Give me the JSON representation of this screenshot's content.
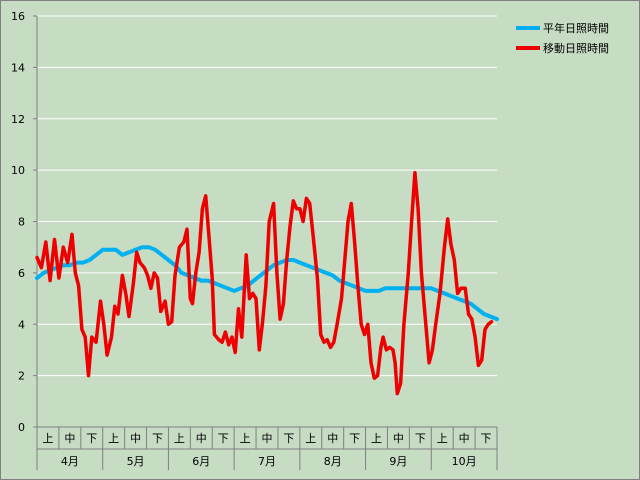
{
  "colors": {
    "background": "#c6dcc3",
    "grid": "#ffffff",
    "normal": "#00b0f0",
    "moving": "#ee0000"
  },
  "chart_data": {
    "type": "line",
    "title": "",
    "xlabel": "",
    "ylabel": "",
    "ylim": [
      0,
      16
    ],
    "yticks": [
      0,
      2,
      4,
      6,
      8,
      10,
      12,
      14,
      16
    ],
    "months": [
      "4月",
      "5月",
      "6月",
      "7月",
      "8月",
      "9月",
      "10月"
    ],
    "periods": [
      "上",
      "中",
      "下"
    ],
    "legend_position": "top-right",
    "grid": true,
    "series": [
      {
        "name": "平年日照時間",
        "color": "#00b0f0",
        "points": [
          [
            0.0,
            5.8
          ],
          [
            0.3,
            6.0
          ],
          [
            0.6,
            6.1
          ],
          [
            0.9,
            6.2
          ],
          [
            1.2,
            6.3
          ],
          [
            1.5,
            6.3
          ],
          [
            1.8,
            6.4
          ],
          [
            2.1,
            6.4
          ],
          [
            2.4,
            6.5
          ],
          [
            2.7,
            6.7
          ],
          [
            3.0,
            6.9
          ],
          [
            3.3,
            6.9
          ],
          [
            3.6,
            6.9
          ],
          [
            3.9,
            6.7
          ],
          [
            4.2,
            6.8
          ],
          [
            4.5,
            6.9
          ],
          [
            4.8,
            7.0
          ],
          [
            5.1,
            7.0
          ],
          [
            5.4,
            6.9
          ],
          [
            5.7,
            6.7
          ],
          [
            6.0,
            6.5
          ],
          [
            6.3,
            6.3
          ],
          [
            6.6,
            6.0
          ],
          [
            6.9,
            5.9
          ],
          [
            7.2,
            5.8
          ],
          [
            7.5,
            5.7
          ],
          [
            7.8,
            5.7
          ],
          [
            8.1,
            5.6
          ],
          [
            8.4,
            5.5
          ],
          [
            8.7,
            5.4
          ],
          [
            9.0,
            5.3
          ],
          [
            9.3,
            5.4
          ],
          [
            9.6,
            5.5
          ],
          [
            9.9,
            5.7
          ],
          [
            10.2,
            5.9
          ],
          [
            10.5,
            6.1
          ],
          [
            10.8,
            6.3
          ],
          [
            11.1,
            6.4
          ],
          [
            11.4,
            6.5
          ],
          [
            11.7,
            6.5
          ],
          [
            12.0,
            6.4
          ],
          [
            12.3,
            6.3
          ],
          [
            12.6,
            6.2
          ],
          [
            12.9,
            6.1
          ],
          [
            13.2,
            6.0
          ],
          [
            13.5,
            5.9
          ],
          [
            13.8,
            5.7
          ],
          [
            14.1,
            5.6
          ],
          [
            14.4,
            5.5
          ],
          [
            14.7,
            5.4
          ],
          [
            15.0,
            5.3
          ],
          [
            15.3,
            5.3
          ],
          [
            15.6,
            5.3
          ],
          [
            15.9,
            5.4
          ],
          [
            16.2,
            5.4
          ],
          [
            16.5,
            5.4
          ],
          [
            16.8,
            5.4
          ],
          [
            17.1,
            5.4
          ],
          [
            17.4,
            5.4
          ],
          [
            17.7,
            5.4
          ],
          [
            18.0,
            5.4
          ],
          [
            18.3,
            5.3
          ],
          [
            18.6,
            5.2
          ],
          [
            18.9,
            5.1
          ],
          [
            19.2,
            5.0
          ],
          [
            19.5,
            4.9
          ],
          [
            19.8,
            4.8
          ],
          [
            20.1,
            4.6
          ],
          [
            20.4,
            4.4
          ],
          [
            20.7,
            4.3
          ],
          [
            21.0,
            4.2
          ]
        ]
      },
      {
        "name": "移動日照時間",
        "color": "#ee0000",
        "points": [
          [
            0.0,
            6.6
          ],
          [
            0.2,
            6.2
          ],
          [
            0.4,
            7.2
          ],
          [
            0.6,
            5.7
          ],
          [
            0.8,
            7.3
          ],
          [
            1.0,
            5.8
          ],
          [
            1.2,
            7.0
          ],
          [
            1.4,
            6.4
          ],
          [
            1.6,
            7.5
          ],
          [
            1.75,
            6.0
          ],
          [
            1.9,
            5.5
          ],
          [
            2.05,
            3.8
          ],
          [
            2.2,
            3.5
          ],
          [
            2.35,
            2.0
          ],
          [
            2.5,
            3.5
          ],
          [
            2.7,
            3.3
          ],
          [
            2.9,
            4.9
          ],
          [
            3.05,
            4.0
          ],
          [
            3.2,
            2.8
          ],
          [
            3.4,
            3.5
          ],
          [
            3.55,
            4.7
          ],
          [
            3.7,
            4.4
          ],
          [
            3.9,
            5.9
          ],
          [
            4.05,
            5.2
          ],
          [
            4.2,
            4.3
          ],
          [
            4.4,
            5.6
          ],
          [
            4.55,
            6.8
          ],
          [
            4.7,
            6.4
          ],
          [
            4.9,
            6.2
          ],
          [
            5.05,
            5.9
          ],
          [
            5.2,
            5.4
          ],
          [
            5.35,
            6.0
          ],
          [
            5.5,
            5.8
          ],
          [
            5.65,
            4.5
          ],
          [
            5.85,
            4.9
          ],
          [
            6.0,
            4.0
          ],
          [
            6.15,
            4.1
          ],
          [
            6.3,
            5.9
          ],
          [
            6.5,
            7.0
          ],
          [
            6.7,
            7.2
          ],
          [
            6.85,
            7.7
          ],
          [
            7.0,
            5.0
          ],
          [
            7.1,
            4.8
          ],
          [
            7.25,
            6.0
          ],
          [
            7.4,
            6.8
          ],
          [
            7.55,
            8.5
          ],
          [
            7.7,
            9.0
          ],
          [
            7.85,
            7.4
          ],
          [
            8.0,
            5.8
          ],
          [
            8.1,
            3.6
          ],
          [
            8.3,
            3.4
          ],
          [
            8.45,
            3.3
          ],
          [
            8.6,
            3.7
          ],
          [
            8.75,
            3.2
          ],
          [
            8.9,
            3.5
          ],
          [
            9.05,
            2.9
          ],
          [
            9.2,
            4.6
          ],
          [
            9.35,
            3.5
          ],
          [
            9.55,
            6.7
          ],
          [
            9.7,
            5.0
          ],
          [
            9.85,
            5.2
          ],
          [
            10.0,
            5.0
          ],
          [
            10.15,
            3.0
          ],
          [
            10.3,
            4.1
          ],
          [
            10.45,
            5.5
          ],
          [
            10.6,
            8.0
          ],
          [
            10.8,
            8.7
          ],
          [
            10.95,
            6.0
          ],
          [
            11.1,
            4.2
          ],
          [
            11.25,
            4.8
          ],
          [
            11.4,
            6.5
          ],
          [
            11.55,
            7.8
          ],
          [
            11.7,
            8.8
          ],
          [
            11.85,
            8.5
          ],
          [
            12.0,
            8.5
          ],
          [
            12.15,
            8.0
          ],
          [
            12.3,
            8.9
          ],
          [
            12.45,
            8.7
          ],
          [
            12.6,
            7.5
          ],
          [
            12.8,
            5.8
          ],
          [
            12.95,
            3.6
          ],
          [
            13.1,
            3.3
          ],
          [
            13.25,
            3.4
          ],
          [
            13.4,
            3.1
          ],
          [
            13.55,
            3.3
          ],
          [
            13.7,
            4.0
          ],
          [
            13.9,
            5.0
          ],
          [
            14.05,
            6.5
          ],
          [
            14.2,
            8.0
          ],
          [
            14.35,
            8.7
          ],
          [
            14.5,
            7.2
          ],
          [
            14.65,
            5.5
          ],
          [
            14.8,
            4.0
          ],
          [
            14.95,
            3.6
          ],
          [
            15.1,
            4.0
          ],
          [
            15.25,
            2.5
          ],
          [
            15.4,
            1.9
          ],
          [
            15.55,
            2.0
          ],
          [
            15.7,
            3.1
          ],
          [
            15.8,
            3.5
          ],
          [
            15.95,
            3.0
          ],
          [
            16.1,
            3.1
          ],
          [
            16.25,
            3.0
          ],
          [
            16.35,
            2.5
          ],
          [
            16.45,
            1.3
          ],
          [
            16.6,
            1.7
          ],
          [
            16.75,
            4.0
          ],
          [
            16.95,
            6.0
          ],
          [
            17.1,
            8.0
          ],
          [
            17.25,
            9.9
          ],
          [
            17.4,
            8.5
          ],
          [
            17.55,
            6.0
          ],
          [
            17.75,
            4.0
          ],
          [
            17.9,
            2.5
          ],
          [
            18.05,
            3.0
          ],
          [
            18.2,
            4.0
          ],
          [
            18.4,
            5.2
          ],
          [
            18.6,
            7.0
          ],
          [
            18.75,
            8.1
          ],
          [
            18.9,
            7.1
          ],
          [
            19.05,
            6.5
          ],
          [
            19.2,
            5.2
          ],
          [
            19.35,
            5.4
          ],
          [
            19.55,
            5.4
          ],
          [
            19.7,
            4.4
          ],
          [
            19.85,
            4.2
          ],
          [
            20.0,
            3.5
          ],
          [
            20.15,
            2.4
          ],
          [
            20.3,
            2.6
          ],
          [
            20.45,
            3.8
          ],
          [
            20.6,
            4.0
          ],
          [
            20.75,
            4.1
          ]
        ]
      }
    ]
  }
}
